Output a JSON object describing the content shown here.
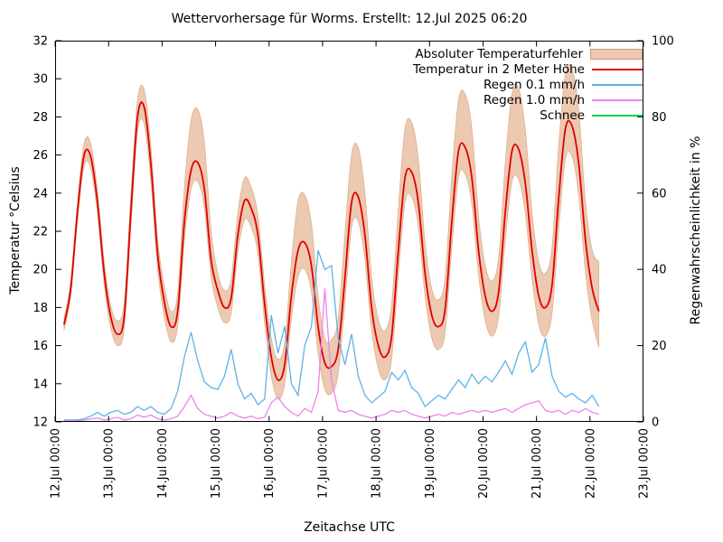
{
  "chart_data": {
    "type": "line",
    "title": "Wettervorhersage für Worms. Erstellt: 12.Jul 2025 06:20",
    "xlabel": "Zeitachse UTC",
    "ylabel_left": "Temperatur °Celsius",
    "ylabel_right": "Regenwahrscheinlichkeit in %",
    "grid": false,
    "legend_position": "top-right-inside",
    "x_axis": {
      "unit": "hours since 12.Jul 00:00 UTC",
      "min": 0,
      "max": 264,
      "tick_step_hours": 24,
      "tick_labels": [
        "12.Jul 00:00",
        "13.Jul 00:00",
        "14.Jul 00:00",
        "15.Jul 00:00",
        "16.Jul 00:00",
        "17.Jul 00:00",
        "18.Jul 00:00",
        "19.Jul 00:00",
        "20.Jul 00:00",
        "21.Jul 00:00",
        "22.Jul 00:00",
        "23.Jul 00:00"
      ]
    },
    "y_axis_left": {
      "min": 12,
      "max": 32,
      "ticks": [
        12,
        14,
        16,
        18,
        20,
        22,
        24,
        26,
        28,
        30,
        32
      ]
    },
    "y_axis_right": {
      "min": 0,
      "max": 100,
      "ticks": [
        0,
        20,
        40,
        60,
        80,
        100
      ]
    },
    "x_hours": [
      4,
      7,
      10,
      13,
      16,
      19,
      22,
      25,
      28,
      31,
      34,
      37,
      40,
      43,
      46,
      49,
      52,
      55,
      58,
      61,
      64,
      67,
      70,
      73,
      76,
      79,
      82,
      85,
      88,
      91,
      94,
      97,
      100,
      103,
      106,
      109,
      112,
      115,
      118,
      121,
      124,
      127,
      130,
      133,
      136,
      139,
      142,
      145,
      148,
      151,
      154,
      157,
      160,
      163,
      166,
      169,
      172,
      175,
      178,
      181,
      184,
      187,
      190,
      193,
      196,
      199,
      202,
      205,
      208,
      211,
      214,
      217,
      220,
      223,
      226,
      229,
      232,
      235,
      238,
      241,
      244
    ],
    "series": [
      {
        "name": "Absoluter Temperaturfehler",
        "type": "band",
        "axis": "left",
        "fill": "#ecc9b0",
        "edge": "#ddac8c",
        "low": [
          16.8,
          18.6,
          22.5,
          25.4,
          25.3,
          22.9,
          19.2,
          16.9,
          16.0,
          16.9,
          22.2,
          27.2,
          27.6,
          24.6,
          20.0,
          17.5,
          16.2,
          17.0,
          21.5,
          24.2,
          24.6,
          23.2,
          19.6,
          18.0,
          17.2,
          17.7,
          20.9,
          22.6,
          22.2,
          20.8,
          17.2,
          14.4,
          13.2,
          14.0,
          17.4,
          19.6,
          20.0,
          18.8,
          15.6,
          13.7,
          13.5,
          14.5,
          18.2,
          22.2,
          22.5,
          20.5,
          16.8,
          14.8,
          14.2,
          15.3,
          19.7,
          23.5,
          23.8,
          22.2,
          18.6,
          16.4,
          15.8,
          16.7,
          21.1,
          24.8,
          25.0,
          23.4,
          19.7,
          17.3,
          16.5,
          17.5,
          21.5,
          24.6,
          24.7,
          22.9,
          19.5,
          17.1,
          16.5,
          17.7,
          22.2,
          25.8,
          25.9,
          23.8,
          19.8,
          17.3,
          15.9
        ],
        "high": [
          17.4,
          19.4,
          23.5,
          26.6,
          26.6,
          24.1,
          20.4,
          18.1,
          17.3,
          18.3,
          23.9,
          28.9,
          29.4,
          26.4,
          21.6,
          19.1,
          17.8,
          18.8,
          24.3,
          27.8,
          28.4,
          26.6,
          22.0,
          19.8,
          18.9,
          19.5,
          23.0,
          24.8,
          24.3,
          22.8,
          19.2,
          16.4,
          15.3,
          16.2,
          20.4,
          23.6,
          23.9,
          22.4,
          18.6,
          16.4,
          16.3,
          17.4,
          21.8,
          26.0,
          26.4,
          24.0,
          19.6,
          17.4,
          16.8,
          18.2,
          23.2,
          27.4,
          27.7,
          25.8,
          21.4,
          19.0,
          18.4,
          19.6,
          24.9,
          28.9,
          29.2,
          27.4,
          22.8,
          20.2,
          19.4,
          20.6,
          25.6,
          29.2,
          29.5,
          27.3,
          23.0,
          20.4,
          19.8,
          21.2,
          26.6,
          30.3,
          30.5,
          28.3,
          23.5,
          21.0,
          20.4
        ]
      },
      {
        "name": "Temperatur in 2 Meter Höhe",
        "type": "line",
        "axis": "left",
        "color": "#e00000",
        "values": [
          17.1,
          19.0,
          23.0,
          26.0,
          25.9,
          23.5,
          19.8,
          17.5,
          16.6,
          17.5,
          23.0,
          28.0,
          28.5,
          25.5,
          20.8,
          18.3,
          17.0,
          17.8,
          22.5,
          25.2,
          25.6,
          24.2,
          20.5,
          18.9,
          18.0,
          18.5,
          21.8,
          23.6,
          23.2,
          21.8,
          18.2,
          15.4,
          14.2,
          15.0,
          18.6,
          21.0,
          21.4,
          20.2,
          17.0,
          15.1,
          14.9,
          15.8,
          19.5,
          23.5,
          23.8,
          21.8,
          18.0,
          16.0,
          15.4,
          16.5,
          21.0,
          24.8,
          25.1,
          23.5,
          19.8,
          17.6,
          17.0,
          17.9,
          22.5,
          26.2,
          26.4,
          24.8,
          21.0,
          18.6,
          17.8,
          18.8,
          23.0,
          26.2,
          26.3,
          24.5,
          21.0,
          18.6,
          18.0,
          19.2,
          23.8,
          27.4,
          27.5,
          25.5,
          21.5,
          19.0,
          17.8
        ]
      },
      {
        "name": "Regen 0.1 mm/h",
        "type": "line",
        "axis": "right",
        "color": "#5eb3e8",
        "values": [
          0.5,
          0.5,
          0.5,
          0.8,
          1.5,
          2.5,
          1.5,
          2.5,
          3.0,
          2.0,
          2.5,
          4.0,
          3.0,
          4.0,
          2.5,
          2.0,
          3.5,
          8.0,
          17.0,
          23.5,
          16.0,
          10.5,
          9.0,
          8.5,
          12.0,
          19.0,
          10.0,
          6.0,
          7.5,
          4.5,
          6.0,
          28.0,
          18.0,
          25.0,
          10.0,
          7.0,
          20.0,
          25.0,
          45.0,
          40.0,
          41.0,
          22.0,
          15.0,
          23.0,
          12.0,
          7.0,
          5.0,
          6.5,
          8.0,
          13.0,
          11.0,
          13.5,
          9.0,
          7.5,
          4.0,
          5.5,
          7.0,
          6.0,
          8.5,
          11.0,
          9.0,
          12.5,
          10.0,
          12.0,
          10.5,
          13.0,
          16.0,
          12.5,
          18.0,
          21.0,
          13.0,
          15.0,
          22.0,
          12.0,
          8.0,
          6.5,
          7.5,
          6.0,
          5.0,
          7.0,
          4.0
        ]
      },
      {
        "name": "Regen 1.0 mm/h",
        "type": "line",
        "axis": "right",
        "color": "#ee82ee",
        "values": [
          0.3,
          0.3,
          0.3,
          0.5,
          0.8,
          1.0,
          0.5,
          0.8,
          1.2,
          0.5,
          0.8,
          1.8,
          1.2,
          1.8,
          0.8,
          0.5,
          0.8,
          1.5,
          4.0,
          7.0,
          3.5,
          2.0,
          1.5,
          1.0,
          1.5,
          2.5,
          1.5,
          1.0,
          1.5,
          0.8,
          1.2,
          5.0,
          6.5,
          4.0,
          2.5,
          1.5,
          3.5,
          2.5,
          8.0,
          35.0,
          11.0,
          3.0,
          2.5,
          3.0,
          2.0,
          1.5,
          1.0,
          1.5,
          2.0,
          3.0,
          2.5,
          3.0,
          2.0,
          1.5,
          1.0,
          1.5,
          2.0,
          1.5,
          2.5,
          2.0,
          2.5,
          3.0,
          2.5,
          3.0,
          2.5,
          3.0,
          3.5,
          2.5,
          3.5,
          4.5,
          5.0,
          5.5,
          3.0,
          2.5,
          3.0,
          2.0,
          3.0,
          2.5,
          3.5,
          2.5,
          2.0
        ]
      },
      {
        "name": "Schnee",
        "type": "line",
        "axis": "right",
        "color": "#00d532",
        "values": []
      }
    ]
  }
}
